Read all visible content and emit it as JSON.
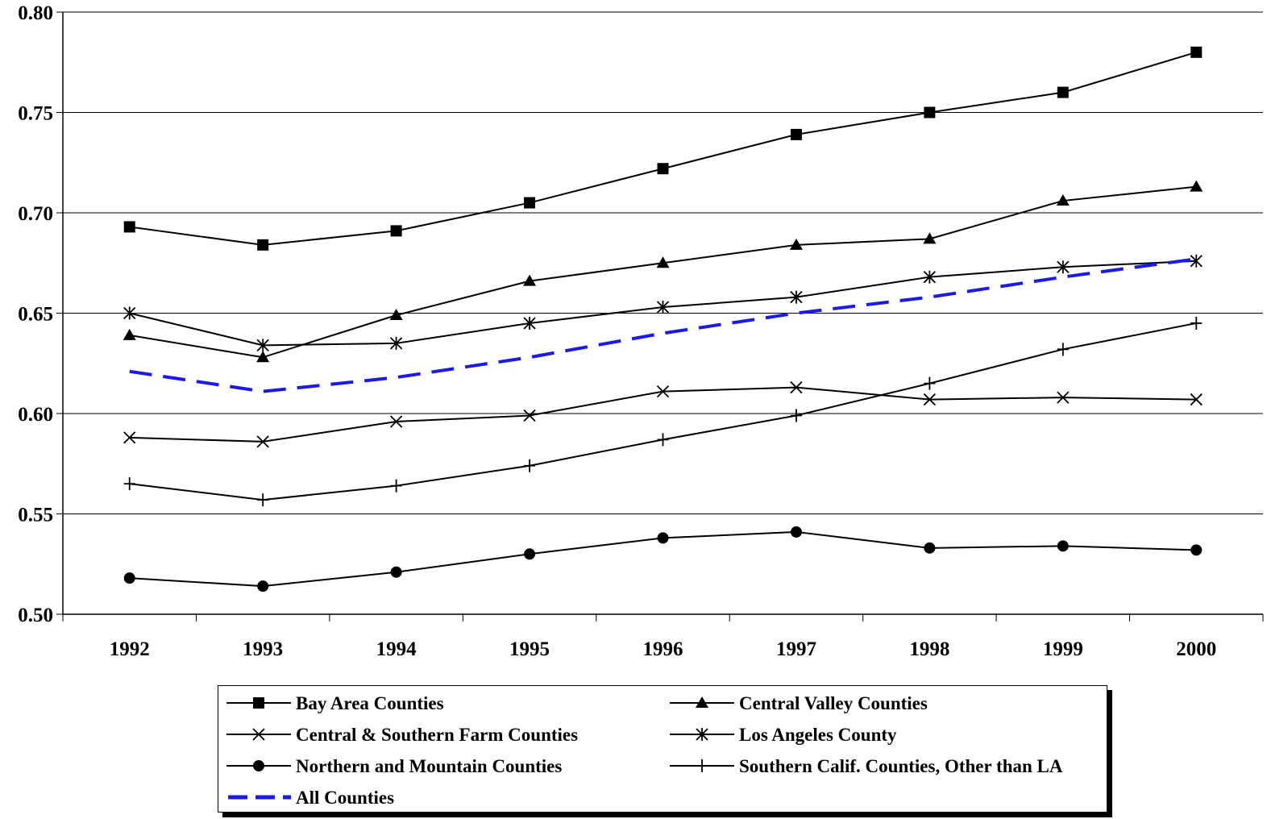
{
  "chart_data": {
    "type": "line",
    "title": "",
    "xlabel": "",
    "ylabel": "",
    "x": [
      "1992",
      "1993",
      "1994",
      "1995",
      "1996",
      "1997",
      "1998",
      "1999",
      "2000"
    ],
    "ylim": [
      0.5,
      0.8
    ],
    "yticks": [
      "0.50",
      "0.55",
      "0.60",
      "0.65",
      "0.70",
      "0.75",
      "0.80"
    ],
    "grid": true,
    "legend_position": "bottom",
    "series": [
      {
        "name": "Bay Area Counties",
        "marker": "square",
        "color": "#000000",
        "dash": false,
        "values": [
          0.693,
          0.684,
          0.691,
          0.705,
          0.722,
          0.739,
          0.75,
          0.76,
          0.78
        ]
      },
      {
        "name": "Central Valley Counties",
        "marker": "triangle",
        "color": "#000000",
        "dash": false,
        "values": [
          0.639,
          0.628,
          0.649,
          0.666,
          0.675,
          0.684,
          0.687,
          0.706,
          0.713
        ]
      },
      {
        "name": "Central & Southern Farm Counties",
        "marker": "x",
        "color": "#000000",
        "dash": false,
        "values": [
          0.588,
          0.586,
          0.596,
          0.599,
          0.611,
          0.613,
          0.607,
          0.608,
          0.607
        ]
      },
      {
        "name": "Los Angeles County",
        "marker": "asterisk",
        "color": "#000000",
        "dash": false,
        "values": [
          0.65,
          0.634,
          0.635,
          0.645,
          0.653,
          0.658,
          0.668,
          0.673,
          0.676
        ]
      },
      {
        "name": "Northern and Mountain Counties",
        "marker": "circle",
        "color": "#000000",
        "dash": false,
        "values": [
          0.518,
          0.514,
          0.521,
          0.53,
          0.538,
          0.541,
          0.533,
          0.534,
          0.532
        ]
      },
      {
        "name": "Southern Calif. Counties, Other than LA",
        "marker": "plus",
        "color": "#000000",
        "dash": false,
        "values": [
          0.565,
          0.557,
          0.564,
          0.574,
          0.587,
          0.599,
          0.615,
          0.632,
          0.645
        ]
      },
      {
        "name": "All Counties",
        "marker": "none",
        "color": "#1a1aee",
        "dash": true,
        "values": [
          0.621,
          0.611,
          0.618,
          0.628,
          0.64,
          0.65,
          0.658,
          0.668,
          0.677
        ]
      }
    ]
  }
}
